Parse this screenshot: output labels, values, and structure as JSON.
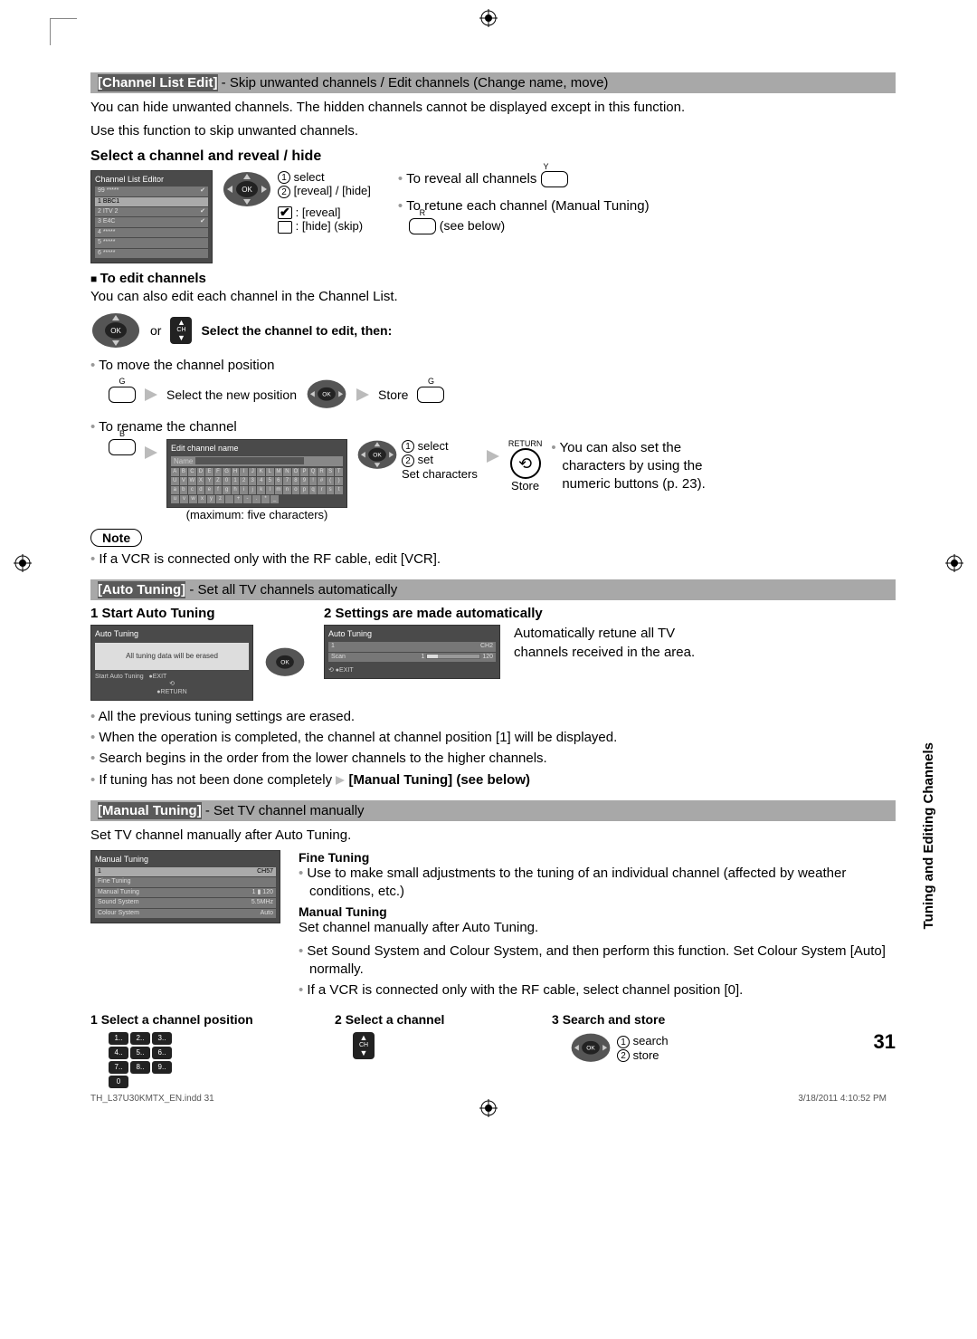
{
  "crop_color": "#888888",
  "section1": {
    "bar_title": "[Channel List Edit]",
    "bar_rest": " - Skip unwanted channels / Edit channels (Change name, move)",
    "intro1": "You can hide unwanted channels. The hidden channels cannot be displayed except in this function.",
    "intro2": "Use this function to skip unwanted channels.",
    "heading": "Select a channel and reveal / hide",
    "editor_title": "Channel List Editor",
    "ch_rows": [
      {
        "n": "99",
        "name": "*****",
        "check": true
      },
      {
        "n": "1",
        "name": "BBC1",
        "check": false,
        "sel": true
      },
      {
        "n": "2",
        "name": "ITV 2",
        "check": true
      },
      {
        "n": "3",
        "name": "E4C",
        "check": true
      },
      {
        "n": "4",
        "name": "*****",
        "check": false
      },
      {
        "n": "5",
        "name": "*****",
        "check": false
      },
      {
        "n": "6",
        "name": "*****",
        "check": false
      }
    ],
    "step1": "select",
    "step2": "[reveal] / [hide]",
    "reveal_lbl": ": [reveal]",
    "hide_lbl": ": [hide] (skip)",
    "right1": "To reveal all channels",
    "right1_btn": "Y",
    "right2": "To retune each channel (Manual Tuning)",
    "right2_btn": "R",
    "right2_below": "(see below)",
    "edit_head": "To edit channels",
    "edit_intro": "You can also edit each channel in the Channel List.",
    "or": "or",
    "select_edit": "Select the channel to edit, then:",
    "move_intro": "To move the channel position",
    "move1_btn": "G",
    "move1_txt": "Select the new position",
    "move2_txt": "Store",
    "move2_btn": "G",
    "rename_intro": "To rename the channel",
    "rename_btn": "B",
    "kb_title": "Edit channel name",
    "kb_name": "Name",
    "kb_rows": [
      "ABCDEFGHIJKLMNOPQRST",
      "UVWXYZ0123456789!#()",
      "abcdefghijklmnopqrst",
      "uvwxyz +-.*_"
    ],
    "kb_caption": "(maximum: five characters)",
    "kb_step1": "select",
    "kb_step2": "set",
    "kb_setchars": "Set characters",
    "kb_store": "Store",
    "kb_return": "RETURN",
    "kb_right": "You can also set the characters by using the numeric buttons (p. 23).",
    "note_label": "Note",
    "note_txt": "If a VCR is connected only with the RF cable, edit [VCR]."
  },
  "section2": {
    "bar_title": "[Auto Tuning]",
    "bar_rest": " - Set all TV channels automatically",
    "step1_head": "Start Auto Tuning",
    "step2_head": "Settings are made automatically",
    "box1_title": "Auto Tuning",
    "box1_msg": "All tuning data will be erased",
    "box1_start": "Start Auto Tuning",
    "box1_exit": "EXIT",
    "box1_return": "RETURN",
    "box2_title": "Auto Tuning",
    "box2_scan": "Scan",
    "box2_ch": "CH2",
    "box2_val1": "1",
    "box2_val2": "120",
    "box2_exit": "EXIT",
    "right_txt": "Automatically retune all TV channels received in the area.",
    "bul1": "All the previous tuning settings are erased.",
    "bul2": "When the operation is completed, the channel at channel position [1] will be displayed.",
    "bul3": "Search begins in the order from the lower channels to the higher channels.",
    "bul4a": "If tuning has not been done completely ",
    "bul4b": "Manual Tuning] (see below)"
  },
  "section3": {
    "bar_title": "[Manual Tuning]",
    "bar_rest": " - Set TV channel manually",
    "intro": "Set TV channel manually after Auto Tuning.",
    "mt_title": "Manual Tuning",
    "mt_rows": [
      {
        "l": "1",
        "r": "CH57"
      },
      {
        "l": "Fine Tuning",
        "r": ""
      },
      {
        "l": "Manual Tuning",
        "r": "1 ▮ 120"
      },
      {
        "l": "Sound System",
        "r": "5.5MHz"
      },
      {
        "l": "Colour System",
        "r": "Auto"
      }
    ],
    "ft_head": "Fine Tuning",
    "ft_txt": "Use to make small adjustments to the tuning of an individual channel (affected by weather conditions, etc.)",
    "mt_head": "Manual Tuning",
    "mt_txt1": "Set channel manually after Auto Tuning.",
    "mt_txt2": "Set Sound System and Colour System, and then perform this function. Set Colour System [Auto] normally.",
    "mt_txt3": "If a VCR is connected only with the RF cable, select channel position [0].",
    "step1": "Select a channel position",
    "step2": "Select a channel",
    "step3": "Search and store",
    "s3_1": "search",
    "s3_2": "store"
  },
  "side_label": "Tuning and Editing Channels",
  "page_number": "31",
  "footer_left": "TH_L37U30KMTX_EN.indd   31",
  "footer_right": "3/18/2011   4:10:52 PM"
}
